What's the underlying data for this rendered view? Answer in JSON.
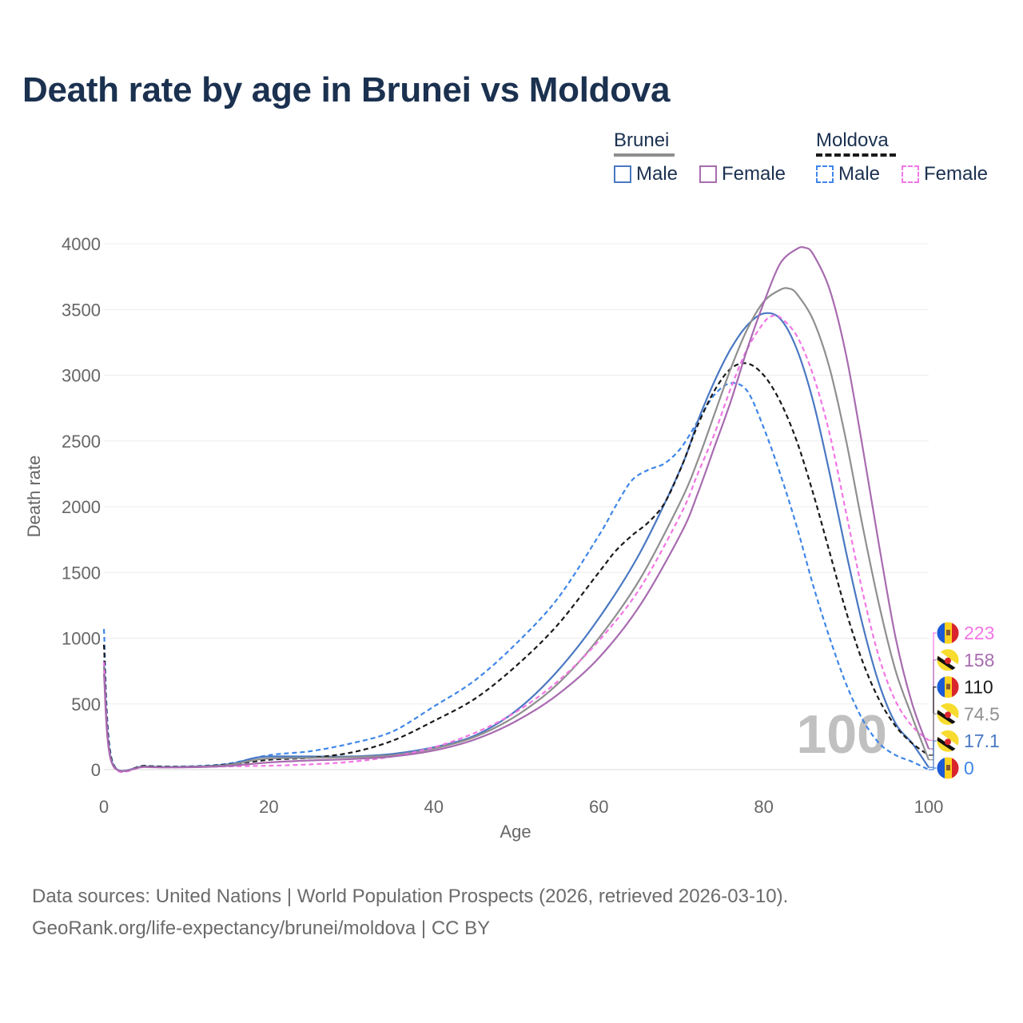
{
  "title": "Death rate by age in Brunei vs Moldova",
  "legend": {
    "groups": [
      {
        "country": "Brunei",
        "line_style": "solid",
        "color": "#8f8f8f",
        "items": [
          {
            "label": "Male",
            "color": "#4a78c2"
          },
          {
            "label": "Female",
            "color": "#a86bb0"
          }
        ]
      },
      {
        "country": "Moldova",
        "line_style": "dashed",
        "color": "#1a1a1a",
        "items": [
          {
            "label": "Male",
            "color": "#3f86e8"
          },
          {
            "label": "Female",
            "color": "#f276e4"
          }
        ]
      }
    ]
  },
  "year_watermark": "100",
  "footer": {
    "line1": "Data sources: United Nations | World Population Prospects (2026, retrieved 2026-03-10).",
    "line2": "GeoRank.org/life-expectancy/brunei/moldova | CC BY"
  },
  "chart_data": {
    "type": "line",
    "title": "Death rate by age in Brunei vs Moldova",
    "xlabel": "Age",
    "ylabel": "Death rate",
    "xlim": [
      0,
      100
    ],
    "ylim": [
      0,
      4000
    ],
    "xticks": [
      0,
      20,
      40,
      60,
      80,
      100
    ],
    "yticks": [
      0,
      500,
      1000,
      1500,
      2000,
      2500,
      3000,
      3500,
      4000
    ],
    "grid": true,
    "series": [
      {
        "name": "Moldova Male",
        "country": "Moldova",
        "sex": "Male",
        "color": "#3f86e8",
        "dash": true,
        "flag": "moldova",
        "end_label": "0",
        "points": [
          [
            0,
            1070
          ],
          [
            1,
            70
          ],
          [
            5,
            30
          ],
          [
            10,
            25
          ],
          [
            15,
            45
          ],
          [
            20,
            110
          ],
          [
            25,
            140
          ],
          [
            30,
            200
          ],
          [
            35,
            290
          ],
          [
            40,
            480
          ],
          [
            45,
            680
          ],
          [
            50,
            960
          ],
          [
            55,
            1300
          ],
          [
            60,
            1780
          ],
          [
            62,
            2000
          ],
          [
            64,
            2200
          ],
          [
            66,
            2280
          ],
          [
            68,
            2330
          ],
          [
            70,
            2450
          ],
          [
            72,
            2650
          ],
          [
            74,
            2850
          ],
          [
            76,
            2940
          ],
          [
            78,
            2880
          ],
          [
            80,
            2600
          ],
          [
            82,
            2250
          ],
          [
            84,
            1850
          ],
          [
            86,
            1400
          ],
          [
            88,
            1000
          ],
          [
            90,
            650
          ],
          [
            92,
            380
          ],
          [
            94,
            200
          ],
          [
            96,
            110
          ],
          [
            98,
            60
          ],
          [
            100,
            0
          ]
        ]
      },
      {
        "name": "Brunei Male",
        "country": "Brunei",
        "sex": "Male",
        "color": "#4a78c2",
        "dash": false,
        "flag": "brunei",
        "end_label": "17.1",
        "points": [
          [
            0,
            830
          ],
          [
            1,
            55
          ],
          [
            5,
            25
          ],
          [
            10,
            22
          ],
          [
            15,
            40
          ],
          [
            18,
            85
          ],
          [
            20,
            100
          ],
          [
            25,
            100
          ],
          [
            30,
            100
          ],
          [
            35,
            120
          ],
          [
            40,
            170
          ],
          [
            45,
            260
          ],
          [
            50,
            450
          ],
          [
            55,
            750
          ],
          [
            60,
            1150
          ],
          [
            65,
            1650
          ],
          [
            70,
            2300
          ],
          [
            72,
            2650
          ],
          [
            74,
            2950
          ],
          [
            76,
            3200
          ],
          [
            78,
            3380
          ],
          [
            80,
            3470
          ],
          [
            82,
            3430
          ],
          [
            84,
            3200
          ],
          [
            86,
            2800
          ],
          [
            88,
            2250
          ],
          [
            90,
            1650
          ],
          [
            92,
            1100
          ],
          [
            94,
            650
          ],
          [
            96,
            350
          ],
          [
            98,
            200
          ],
          [
            100,
            17.1
          ]
        ]
      },
      {
        "name": "Moldova Total",
        "country": "Moldova",
        "sex": "Total",
        "color": "#1a1a1a",
        "dash": true,
        "flag": "moldova",
        "end_label": "110",
        "points": [
          [
            0,
            950
          ],
          [
            1,
            60
          ],
          [
            5,
            28
          ],
          [
            10,
            22
          ],
          [
            15,
            38
          ],
          [
            20,
            75
          ],
          [
            25,
            90
          ],
          [
            30,
            130
          ],
          [
            35,
            220
          ],
          [
            40,
            370
          ],
          [
            45,
            540
          ],
          [
            50,
            790
          ],
          [
            55,
            1100
          ],
          [
            60,
            1500
          ],
          [
            62,
            1660
          ],
          [
            64,
            1780
          ],
          [
            66,
            1880
          ],
          [
            68,
            2030
          ],
          [
            70,
            2300
          ],
          [
            72,
            2620
          ],
          [
            74,
            2880
          ],
          [
            76,
            3050
          ],
          [
            78,
            3090
          ],
          [
            80,
            3000
          ],
          [
            82,
            2800
          ],
          [
            84,
            2500
          ],
          [
            86,
            2100
          ],
          [
            88,
            1650
          ],
          [
            90,
            1200
          ],
          [
            92,
            820
          ],
          [
            94,
            530
          ],
          [
            96,
            330
          ],
          [
            98,
            200
          ],
          [
            100,
            110
          ]
        ]
      },
      {
        "name": "Brunei Total",
        "country": "Brunei",
        "sex": "Total",
        "color": "#8f8f8f",
        "dash": false,
        "flag": "brunei",
        "end_label": "74.5",
        "points": [
          [
            0,
            780
          ],
          [
            1,
            50
          ],
          [
            5,
            22
          ],
          [
            10,
            20
          ],
          [
            15,
            35
          ],
          [
            18,
            70
          ],
          [
            20,
            85
          ],
          [
            25,
            90
          ],
          [
            30,
            95
          ],
          [
            35,
            110
          ],
          [
            40,
            160
          ],
          [
            45,
            250
          ],
          [
            50,
            410
          ],
          [
            55,
            650
          ],
          [
            60,
            1000
          ],
          [
            65,
            1450
          ],
          [
            70,
            2050
          ],
          [
            72,
            2350
          ],
          [
            74,
            2700
          ],
          [
            76,
            3050
          ],
          [
            78,
            3350
          ],
          [
            80,
            3560
          ],
          [
            82,
            3650
          ],
          [
            83,
            3660
          ],
          [
            84,
            3620
          ],
          [
            86,
            3420
          ],
          [
            88,
            3050
          ],
          [
            90,
            2500
          ],
          [
            92,
            1850
          ],
          [
            94,
            1250
          ],
          [
            96,
            750
          ],
          [
            98,
            400
          ],
          [
            100,
            74.5
          ]
        ]
      },
      {
        "name": "Moldova Female",
        "country": "Moldova",
        "sex": "Female",
        "color": "#f276e4",
        "dash": true,
        "flag": "moldova",
        "end_label": "223",
        "points": [
          [
            0,
            820
          ],
          [
            1,
            45
          ],
          [
            5,
            20
          ],
          [
            10,
            18
          ],
          [
            15,
            25
          ],
          [
            20,
            30
          ],
          [
            25,
            40
          ],
          [
            30,
            60
          ],
          [
            35,
            100
          ],
          [
            40,
            170
          ],
          [
            45,
            280
          ],
          [
            50,
            440
          ],
          [
            55,
            670
          ],
          [
            60,
            980
          ],
          [
            65,
            1380
          ],
          [
            70,
            1950
          ],
          [
            72,
            2250
          ],
          [
            74,
            2550
          ],
          [
            76,
            2900
          ],
          [
            78,
            3200
          ],
          [
            80,
            3400
          ],
          [
            81,
            3450
          ],
          [
            82,
            3440
          ],
          [
            84,
            3300
          ],
          [
            86,
            3000
          ],
          [
            88,
            2550
          ],
          [
            90,
            1950
          ],
          [
            92,
            1350
          ],
          [
            94,
            850
          ],
          [
            96,
            520
          ],
          [
            98,
            330
          ],
          [
            100,
            223
          ]
        ]
      },
      {
        "name": "Brunei Female",
        "country": "Brunei",
        "sex": "Female",
        "color": "#a86bb0",
        "dash": false,
        "flag": "brunei",
        "end_label": "158",
        "points": [
          [
            0,
            730
          ],
          [
            1,
            45
          ],
          [
            5,
            20
          ],
          [
            10,
            18
          ],
          [
            15,
            28
          ],
          [
            20,
            55
          ],
          [
            25,
            70
          ],
          [
            30,
            80
          ],
          [
            35,
            100
          ],
          [
            40,
            145
          ],
          [
            45,
            230
          ],
          [
            50,
            370
          ],
          [
            55,
            570
          ],
          [
            60,
            850
          ],
          [
            65,
            1250
          ],
          [
            70,
            1800
          ],
          [
            72,
            2100
          ],
          [
            74,
            2450
          ],
          [
            76,
            2800
          ],
          [
            78,
            3200
          ],
          [
            80,
            3550
          ],
          [
            82,
            3850
          ],
          [
            84,
            3960
          ],
          [
            85,
            3970
          ],
          [
            86,
            3920
          ],
          [
            88,
            3650
          ],
          [
            90,
            3150
          ],
          [
            92,
            2450
          ],
          [
            94,
            1700
          ],
          [
            96,
            1000
          ],
          [
            98,
            500
          ],
          [
            100,
            158
          ]
        ]
      }
    ],
    "end_labels_order": [
      "223",
      "158",
      "110",
      "74.5",
      "17.1",
      "0"
    ]
  }
}
